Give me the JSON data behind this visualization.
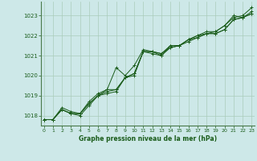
{
  "background_color": "#cde8e8",
  "plot_bg_color": "#cde8e8",
  "grid_color": "#aaccbb",
  "line_color": "#1a5c1a",
  "title": "Graphe pression niveau de la mer (hPa)",
  "ylim": [
    1017.5,
    1023.7
  ],
  "xlim": [
    -0.3,
    23.3
  ],
  "yticks": [
    1018,
    1019,
    1020,
    1021,
    1022,
    1023
  ],
  "xticks": [
    0,
    1,
    2,
    3,
    4,
    5,
    6,
    7,
    8,
    9,
    10,
    11,
    12,
    13,
    14,
    15,
    16,
    17,
    18,
    19,
    20,
    21,
    22,
    23
  ],
  "series": [
    [
      1017.8,
      1017.8,
      1018.3,
      1018.1,
      1018.1,
      1018.6,
      1019.0,
      1019.3,
      1019.3,
      1019.9,
      1020.1,
      1021.2,
      1021.2,
      1021.1,
      1021.5,
      1021.5,
      1021.8,
      1022.0,
      1022.1,
      1022.2,
      1022.5,
      1022.9,
      1023.0,
      1023.4
    ],
    [
      1017.8,
      1017.8,
      1018.3,
      1018.1,
      1018.1,
      1018.6,
      1019.0,
      1019.2,
      1019.3,
      1019.9,
      1020.1,
      1021.2,
      1021.2,
      1021.1,
      1021.4,
      1021.5,
      1021.8,
      1021.9,
      1022.1,
      1022.1,
      1022.3,
      1022.8,
      1022.9,
      1023.1
    ],
    [
      1017.8,
      1017.8,
      1018.4,
      1018.2,
      1018.1,
      1018.7,
      1019.1,
      1019.3,
      1020.4,
      1020.0,
      1020.5,
      1021.3,
      1021.2,
      1021.0,
      1021.5,
      1021.5,
      1021.8,
      1022.0,
      1022.2,
      1022.2,
      1022.5,
      1023.0,
      1022.9,
      1023.2
    ],
    [
      1017.8,
      1017.8,
      1018.3,
      1018.1,
      1018.0,
      1018.5,
      1019.0,
      1019.1,
      1019.2,
      1019.9,
      1020.0,
      1021.2,
      1021.1,
      1021.0,
      1021.4,
      1021.5,
      1021.7,
      1021.9,
      1022.1,
      1022.1,
      1022.3,
      1022.8,
      1022.9,
      1023.1
    ]
  ]
}
